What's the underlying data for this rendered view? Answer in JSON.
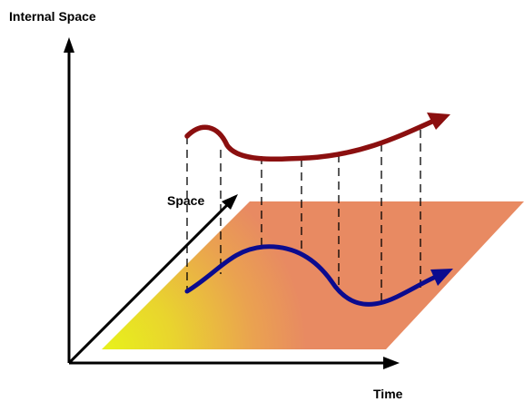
{
  "labels": {
    "vertical_axis": "Internal Space",
    "depth_axis": "Space",
    "horizontal_axis": "Time"
  },
  "colors": {
    "axes": "#000000",
    "plane_near": "#e8f01c",
    "plane_far": "#e88a62",
    "upper_curve": "#8b0f0f",
    "lower_curve": "#0b0b8f",
    "dashed_lines": "#000000"
  }
}
